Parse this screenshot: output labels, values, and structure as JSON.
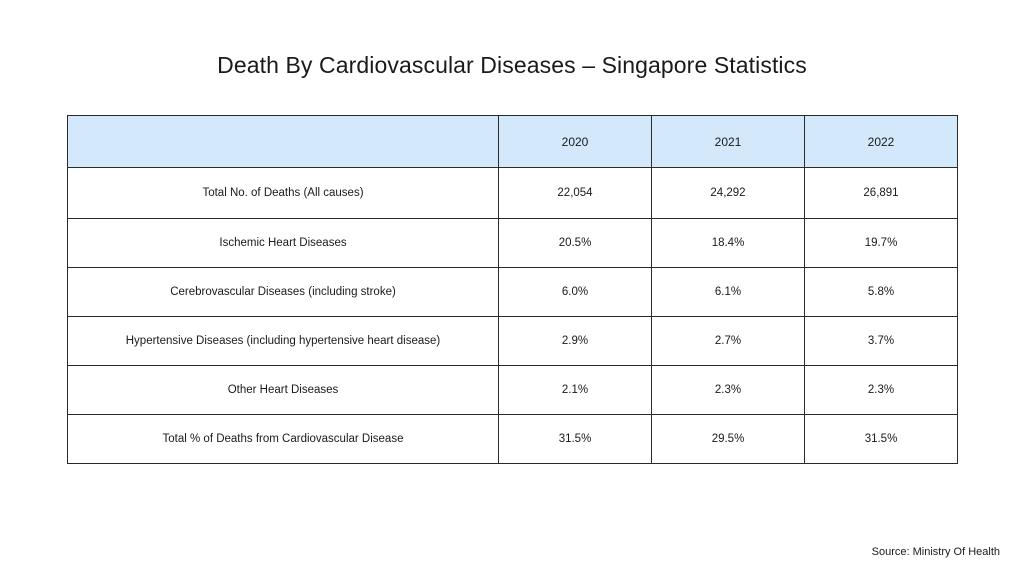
{
  "title": "Death By Cardiovascular Diseases – Singapore Statistics",
  "table": {
    "corner": "",
    "years": [
      "2020",
      "2021",
      "2022"
    ],
    "rows": [
      {
        "label": "Total No. of Deaths (All causes)",
        "values": [
          "22,054",
          "24,292",
          "26,891"
        ]
      },
      {
        "label": "Ischemic Heart  Diseases",
        "values": [
          "20.5%",
          "18.4%",
          "19.7%"
        ]
      },
      {
        "label": "Cerebrovascular Diseases (including stroke)",
        "values": [
          "6.0%",
          "6.1%",
          "5.8%"
        ]
      },
      {
        "label": "Hypertensive Diseases (including hypertensive heart disease)",
        "values": [
          "2.9%",
          "2.7%",
          "3.7%"
        ]
      },
      {
        "label": "Other Heart Diseases",
        "values": [
          "2.1%",
          "2.3%",
          "2.3%"
        ]
      },
      {
        "label": "Total % of Deaths from Cardiovascular Disease",
        "values": [
          "31.5%",
          "29.5%",
          "31.5%"
        ]
      }
    ]
  },
  "source": "Source: Ministry Of Health",
  "colors": {
    "header_background": "#d3e9fb",
    "border": "#2b2b2b"
  },
  "chart_data": {
    "type": "table",
    "title": "Death By Cardiovascular Diseases – Singapore Statistics",
    "columns": [
      "",
      "2020",
      "2021",
      "2022"
    ],
    "rows": [
      [
        "Total No. of Deaths (All causes)",
        22054,
        24292,
        26891
      ],
      [
        "Ischemic Heart  Diseases",
        20.5,
        18.4,
        19.7
      ],
      [
        "Cerebrovascular Diseases (including stroke)",
        6.0,
        6.1,
        5.8
      ],
      [
        "Hypertensive Diseases (including hypertensive heart disease)",
        2.9,
        2.7,
        3.7
      ],
      [
        "Other Heart Diseases",
        2.1,
        2.3,
        2.3
      ],
      [
        "Total % of Deaths from Cardiovascular Disease",
        31.5,
        29.5,
        31.5
      ]
    ],
    "units": [
      "",
      "count",
      "%",
      "%",
      "%",
      "%",
      "%"
    ],
    "source": "Source: Ministry Of Health"
  }
}
